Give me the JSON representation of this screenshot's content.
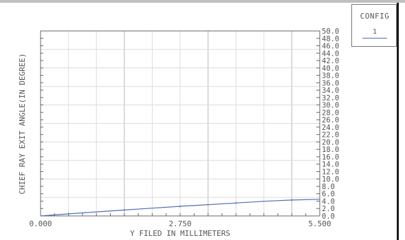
{
  "config": {
    "title": "CONFIG",
    "value": "1",
    "line_color": "#4d6fb0"
  },
  "chart_data": {
    "type": "line",
    "title": "",
    "xlabel": "Y FILED IN MILLIMETERS",
    "ylabel": "CHIEF RAY EXIT ANGLE(IN DEGREE)",
    "xlim": [
      0.0,
      5.5
    ],
    "ylim": [
      0.0,
      50.0
    ],
    "x_ticks": [
      "0.000",
      "2.750",
      "5.500"
    ],
    "y_ticks": [
      "0.0",
      "2.0",
      "4.0",
      "6.0",
      "8.0",
      "10.0",
      "12.0",
      "14.0",
      "16.0",
      "18.0",
      "20.0",
      "22.0",
      "24.0",
      "26.0",
      "28.0",
      "30.0",
      "32.0",
      "34.0",
      "36.0",
      "38.0",
      "40.0",
      "42.0",
      "44.0",
      "46.0",
      "48.0",
      "50.0"
    ],
    "grid": true,
    "series": [
      {
        "color": "#4d6fb0",
        "x": [
          0.0,
          0.55,
          1.1,
          1.65,
          2.2,
          2.75,
          3.3,
          3.85,
          4.4,
          4.95,
          5.5
        ],
        "y": [
          0.0,
          0.55,
          1.1,
          1.6,
          2.1,
          2.6,
          3.05,
          3.5,
          3.95,
          4.3,
          4.5
        ]
      }
    ]
  }
}
